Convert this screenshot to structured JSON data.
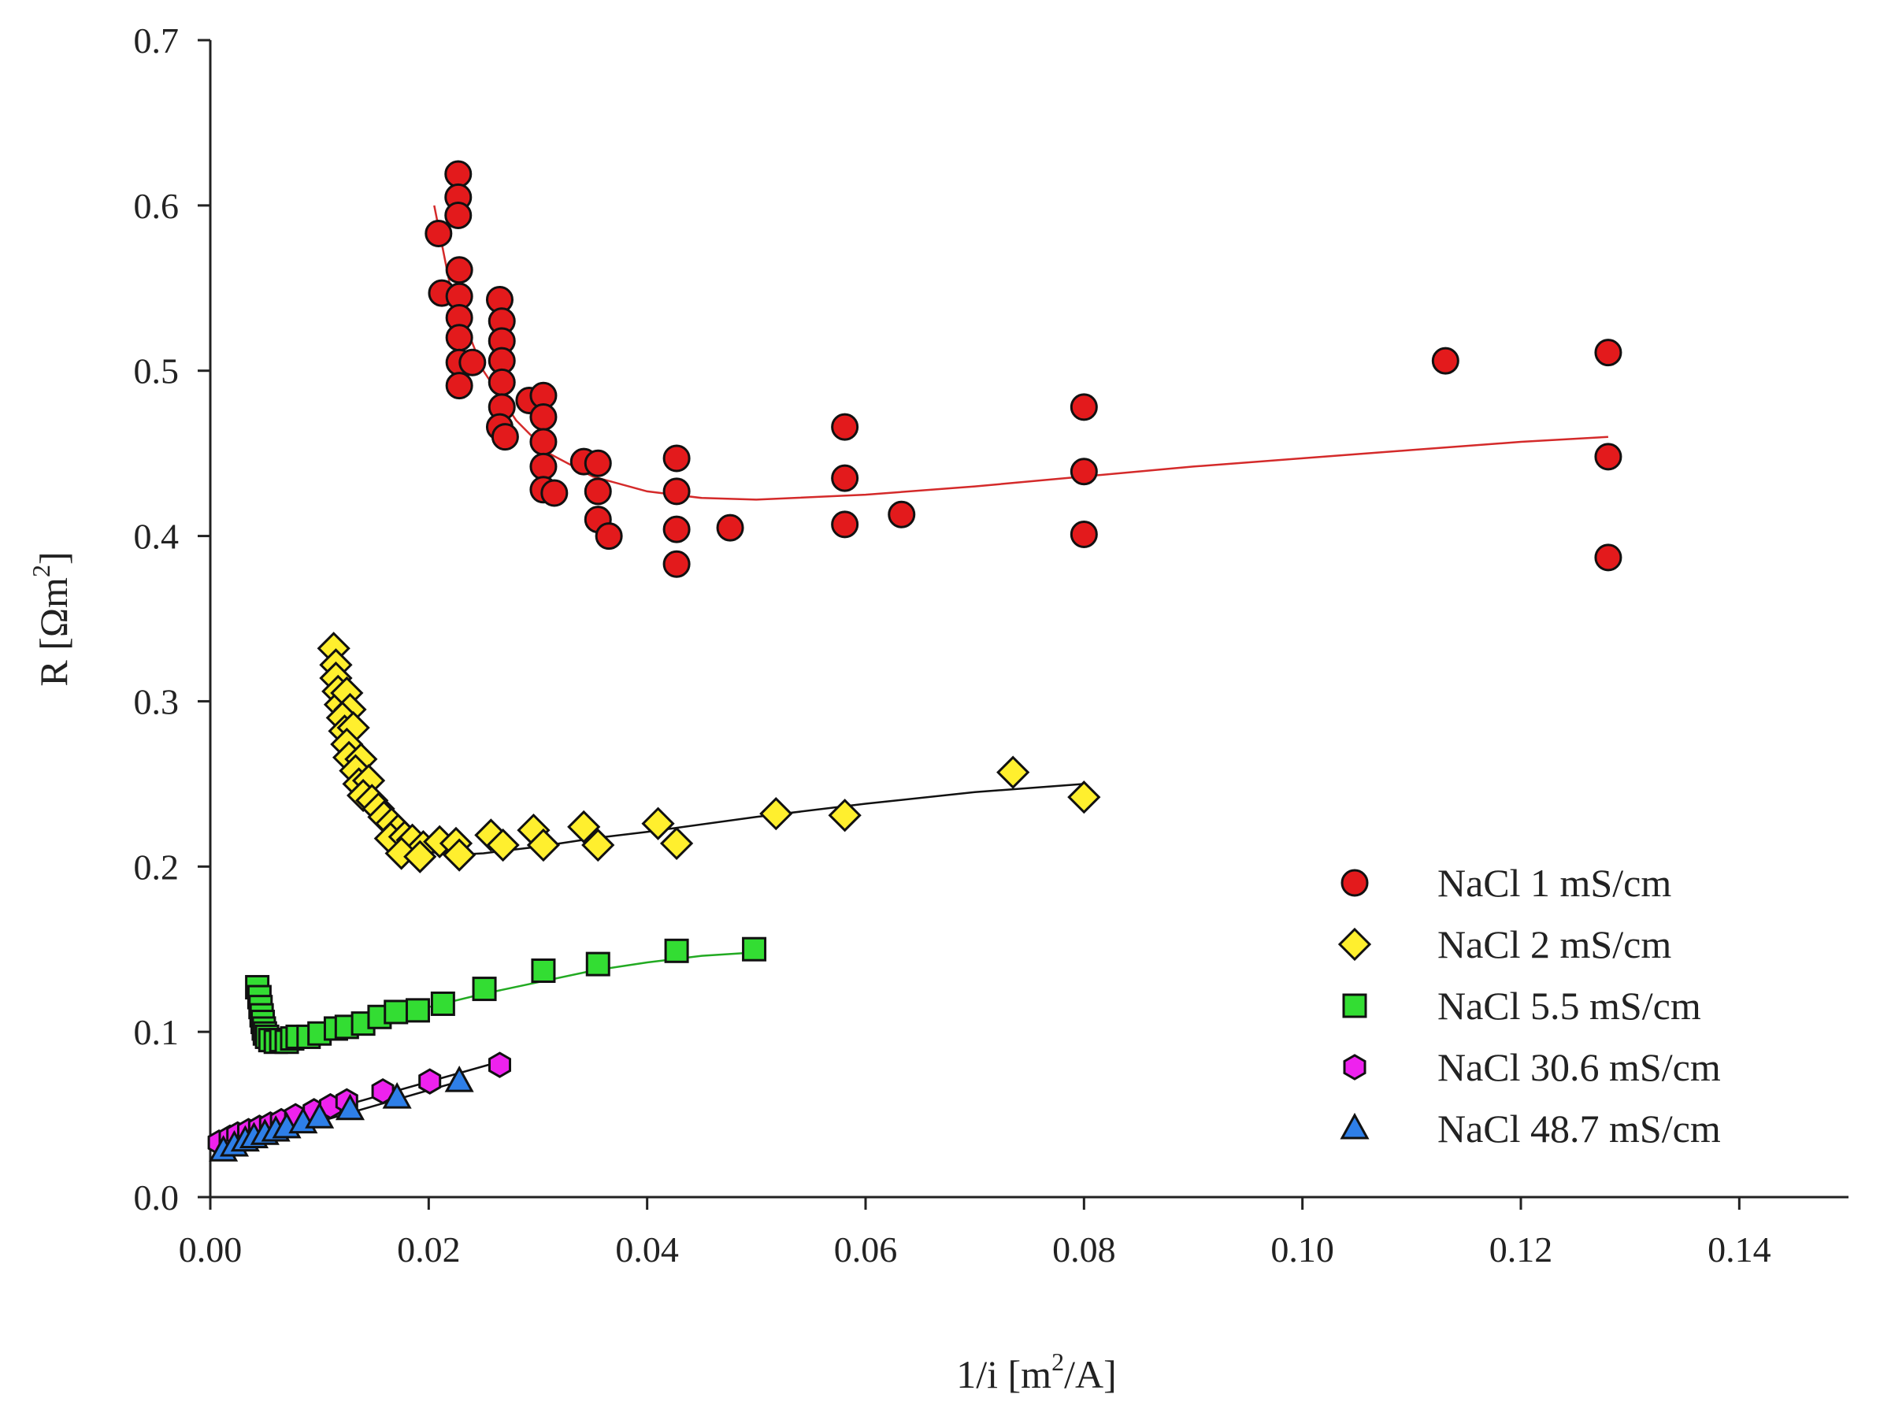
{
  "chart_data": {
    "type": "scatter",
    "title": "",
    "xlabel_parts": {
      "pre": "1/i [m",
      "sup": "2",
      "post": "/A]"
    },
    "ylabel_parts": {
      "pre": "R [Ωm",
      "sup": "2",
      "post": "]"
    },
    "xlim": [
      0,
      0.15
    ],
    "ylim": [
      0,
      0.7
    ],
    "xticks": [
      "0.00",
      "0.02",
      "0.04",
      "0.06",
      "0.08",
      "0.10",
      "0.12",
      "0.14"
    ],
    "yticks": [
      "0.0",
      "0.1",
      "0.2",
      "0.3",
      "0.4",
      "0.5",
      "0.6",
      "0.7"
    ],
    "grid": false,
    "legend_position": "lower-right",
    "series": [
      {
        "name": "NaCl 1 mS/cm",
        "marker": "circle",
        "color": "#e31a1c",
        "line_color": "#d42a2a",
        "points": [
          [
            0.0209,
            0.583
          ],
          [
            0.0212,
            0.547
          ],
          [
            0.0227,
            0.619
          ],
          [
            0.0227,
            0.605
          ],
          [
            0.0227,
            0.594
          ],
          [
            0.0228,
            0.561
          ],
          [
            0.0228,
            0.545
          ],
          [
            0.0228,
            0.532
          ],
          [
            0.0228,
            0.52
          ],
          [
            0.0228,
            0.505
          ],
          [
            0.0228,
            0.491
          ],
          [
            0.024,
            0.505
          ],
          [
            0.0265,
            0.543
          ],
          [
            0.0267,
            0.53
          ],
          [
            0.0267,
            0.518
          ],
          [
            0.0267,
            0.506
          ],
          [
            0.0267,
            0.493
          ],
          [
            0.0267,
            0.478
          ],
          [
            0.0265,
            0.466
          ],
          [
            0.027,
            0.46
          ],
          [
            0.0292,
            0.482
          ],
          [
            0.0305,
            0.485
          ],
          [
            0.0305,
            0.472
          ],
          [
            0.0305,
            0.457
          ],
          [
            0.0305,
            0.442
          ],
          [
            0.0305,
            0.428
          ],
          [
            0.0315,
            0.426
          ],
          [
            0.0342,
            0.445
          ],
          [
            0.0355,
            0.444
          ],
          [
            0.0355,
            0.427
          ],
          [
            0.0355,
            0.41
          ],
          [
            0.0365,
            0.4
          ],
          [
            0.0427,
            0.447
          ],
          [
            0.0427,
            0.427
          ],
          [
            0.0427,
            0.404
          ],
          [
            0.0427,
            0.383
          ],
          [
            0.0476,
            0.405
          ],
          [
            0.0581,
            0.466
          ],
          [
            0.0581,
            0.435
          ],
          [
            0.0581,
            0.407
          ],
          [
            0.0633,
            0.413
          ],
          [
            0.08,
            0.478
          ],
          [
            0.08,
            0.439
          ],
          [
            0.08,
            0.401
          ],
          [
            0.1131,
            0.506
          ],
          [
            0.128,
            0.511
          ],
          [
            0.128,
            0.448
          ],
          [
            0.128,
            0.387
          ]
        ],
        "fit": [
          [
            0.0205,
            0.6
          ],
          [
            0.022,
            0.55
          ],
          [
            0.025,
            0.5
          ],
          [
            0.028,
            0.47
          ],
          [
            0.031,
            0.45
          ],
          [
            0.035,
            0.436
          ],
          [
            0.04,
            0.427
          ],
          [
            0.045,
            0.423
          ],
          [
            0.05,
            0.422
          ],
          [
            0.06,
            0.425
          ],
          [
            0.07,
            0.43
          ],
          [
            0.08,
            0.436
          ],
          [
            0.09,
            0.442
          ],
          [
            0.1,
            0.447
          ],
          [
            0.11,
            0.452
          ],
          [
            0.12,
            0.457
          ],
          [
            0.128,
            0.46
          ]
        ]
      },
      {
        "name": "NaCl 2 mS/cm",
        "marker": "diamond",
        "color": "#ffef2e",
        "line_color": "#111111",
        "points": [
          [
            0.0113,
            0.332
          ],
          [
            0.0115,
            0.322
          ],
          [
            0.0115,
            0.314
          ],
          [
            0.0117,
            0.306
          ],
          [
            0.0119,
            0.298
          ],
          [
            0.0125,
            0.305
          ],
          [
            0.0128,
            0.295
          ],
          [
            0.0121,
            0.29
          ],
          [
            0.0123,
            0.282
          ],
          [
            0.0131,
            0.284
          ],
          [
            0.0125,
            0.274
          ],
          [
            0.0127,
            0.266
          ],
          [
            0.0138,
            0.265
          ],
          [
            0.0133,
            0.258
          ],
          [
            0.0136,
            0.25
          ],
          [
            0.0145,
            0.252
          ],
          [
            0.014,
            0.243
          ],
          [
            0.0148,
            0.24
          ],
          [
            0.0154,
            0.235
          ],
          [
            0.0159,
            0.23
          ],
          [
            0.0166,
            0.226
          ],
          [
            0.0172,
            0.222
          ],
          [
            0.0165,
            0.217
          ],
          [
            0.0178,
            0.218
          ],
          [
            0.0185,
            0.216
          ],
          [
            0.0195,
            0.212
          ],
          [
            0.021,
            0.215
          ],
          [
            0.0225,
            0.214
          ],
          [
            0.0175,
            0.208
          ],
          [
            0.0192,
            0.206
          ],
          [
            0.0228,
            0.207
          ],
          [
            0.0257,
            0.219
          ],
          [
            0.0268,
            0.213
          ],
          [
            0.0296,
            0.222
          ],
          [
            0.0305,
            0.213
          ],
          [
            0.0342,
            0.224
          ],
          [
            0.0355,
            0.213
          ],
          [
            0.041,
            0.226
          ],
          [
            0.0427,
            0.214
          ],
          [
            0.0518,
            0.232
          ],
          [
            0.0581,
            0.231
          ],
          [
            0.0735,
            0.257
          ],
          [
            0.08,
            0.242
          ]
        ],
        "fit": [
          [
            0.0112,
            0.33
          ],
          [
            0.012,
            0.3
          ],
          [
            0.013,
            0.272
          ],
          [
            0.014,
            0.253
          ],
          [
            0.015,
            0.238
          ],
          [
            0.016,
            0.227
          ],
          [
            0.018,
            0.215
          ],
          [
            0.02,
            0.209
          ],
          [
            0.022,
            0.207
          ],
          [
            0.025,
            0.208
          ],
          [
            0.03,
            0.212
          ],
          [
            0.035,
            0.217
          ],
          [
            0.04,
            0.221
          ],
          [
            0.05,
            0.23
          ],
          [
            0.06,
            0.238
          ],
          [
            0.07,
            0.245
          ],
          [
            0.08,
            0.25
          ]
        ]
      },
      {
        "name": "NaCl 5.5 mS/cm",
        "marker": "square",
        "color": "#33dd33",
        "line_color": "#22aa22",
        "points": [
          [
            0.0043,
            0.127
          ],
          [
            0.0045,
            0.121
          ],
          [
            0.0046,
            0.115
          ],
          [
            0.0047,
            0.11
          ],
          [
            0.0048,
            0.106
          ],
          [
            0.0049,
            0.102
          ],
          [
            0.005,
            0.099
          ],
          [
            0.0052,
            0.097
          ],
          [
            0.0055,
            0.095
          ],
          [
            0.006,
            0.094
          ],
          [
            0.0065,
            0.095
          ],
          [
            0.007,
            0.094
          ],
          [
            0.0075,
            0.096
          ],
          [
            0.008,
            0.097
          ],
          [
            0.009,
            0.097
          ],
          [
            0.01,
            0.099
          ],
          [
            0.0115,
            0.102
          ],
          [
            0.0125,
            0.103
          ],
          [
            0.014,
            0.105
          ],
          [
            0.0155,
            0.109
          ],
          [
            0.017,
            0.112
          ],
          [
            0.019,
            0.113
          ],
          [
            0.0213,
            0.117
          ],
          [
            0.0251,
            0.126
          ],
          [
            0.0305,
            0.137
          ],
          [
            0.0355,
            0.141
          ],
          [
            0.0427,
            0.149
          ],
          [
            0.0498,
            0.15
          ]
        ],
        "fit": [
          [
            0.0043,
            0.128
          ],
          [
            0.0045,
            0.118
          ],
          [
            0.0048,
            0.108
          ],
          [
            0.0052,
            0.1
          ],
          [
            0.006,
            0.096
          ],
          [
            0.007,
            0.095
          ],
          [
            0.008,
            0.096
          ],
          [
            0.01,
            0.099
          ],
          [
            0.015,
            0.107
          ],
          [
            0.02,
            0.115
          ],
          [
            0.025,
            0.123
          ],
          [
            0.03,
            0.13
          ],
          [
            0.035,
            0.137
          ],
          [
            0.04,
            0.142
          ],
          [
            0.045,
            0.146
          ],
          [
            0.0498,
            0.148
          ]
        ]
      },
      {
        "name": "NaCl 30.6 mS/cm",
        "marker": "hexagon",
        "color": "#ee22ee",
        "line_color": "#111111",
        "points": [
          [
            0.0008,
            0.033
          ],
          [
            0.0018,
            0.036
          ],
          [
            0.0025,
            0.038
          ],
          [
            0.0035,
            0.04
          ],
          [
            0.0045,
            0.042
          ],
          [
            0.0055,
            0.044
          ],
          [
            0.0065,
            0.046
          ],
          [
            0.0078,
            0.049
          ],
          [
            0.0095,
            0.052
          ],
          [
            0.011,
            0.055
          ],
          [
            0.0125,
            0.058
          ],
          [
            0.0158,
            0.064
          ],
          [
            0.0201,
            0.07
          ],
          [
            0.0265,
            0.08
          ]
        ],
        "fit": [
          [
            0.0008,
            0.034
          ],
          [
            0.026,
            0.081
          ]
        ]
      },
      {
        "name": "NaCl 48.7 mS/cm",
        "marker": "triangle",
        "color": "#2e7fe8",
        "line_color": "#111111",
        "points": [
          [
            0.0012,
            0.028
          ],
          [
            0.0022,
            0.031
          ],
          [
            0.0032,
            0.034
          ],
          [
            0.004,
            0.036
          ],
          [
            0.005,
            0.038
          ],
          [
            0.006,
            0.04
          ],
          [
            0.007,
            0.042
          ],
          [
            0.0085,
            0.045
          ],
          [
            0.01,
            0.048
          ],
          [
            0.0128,
            0.053
          ],
          [
            0.0171,
            0.06
          ],
          [
            0.0228,
            0.07
          ]
        ],
        "fit": [
          [
            0.0012,
            0.029
          ],
          [
            0.0228,
            0.07
          ]
        ]
      }
    ]
  }
}
